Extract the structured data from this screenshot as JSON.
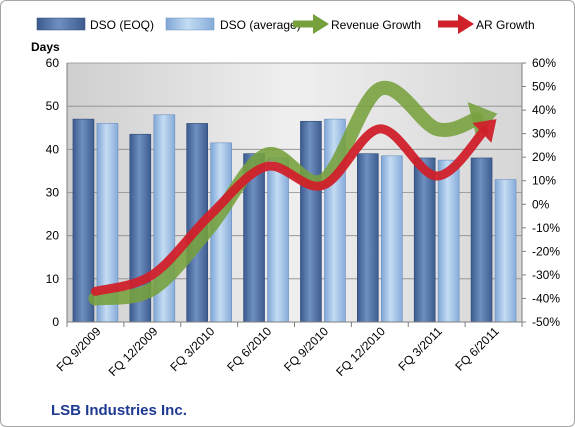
{
  "chart_data": {
    "type": "bar",
    "categories": [
      "FQ 9/2009",
      "FQ 12/2009",
      "FQ 3/2010",
      "FQ 6/2010",
      "FQ 9/2010",
      "FQ 12/2010",
      "FQ 3/2011",
      "FQ 6/2011"
    ],
    "series": [
      {
        "name": "DSO (EOQ)",
        "type": "bar",
        "axis": "left",
        "values": [
          47,
          43.5,
          46,
          39,
          46.5,
          39,
          38,
          38
        ]
      },
      {
        "name": "DSO (average)",
        "type": "bar",
        "axis": "left",
        "values": [
          46,
          48,
          41.5,
          38,
          47,
          38.5,
          37.5,
          33
        ]
      },
      {
        "name": "Revenue Growth",
        "type": "line",
        "axis": "right",
        "values": [
          -40,
          -36,
          -10,
          21,
          10,
          49,
          32,
          38
        ]
      },
      {
        "name": "AR Growth",
        "type": "line",
        "axis": "right",
        "values": [
          -37,
          -30,
          -5,
          16,
          8,
          32,
          12,
          35
        ]
      }
    ],
    "ylabel": "Days",
    "ylim": [
      0,
      60
    ],
    "yticks": [
      0,
      10,
      20,
      30,
      40,
      50,
      60
    ],
    "y2lim": [
      -50,
      60
    ],
    "y2ticks": [
      "-50%",
      "-40%",
      "-30%",
      "-20%",
      "-10%",
      "0%",
      "10%",
      "20%",
      "30%",
      "40%",
      "50%",
      "60%"
    ],
    "legend_position": "top",
    "grid": true,
    "company": "LSB Industries Inc.",
    "colors": {
      "dso_eoq": "#4a6a9c",
      "dso_avg": "#96b9e0",
      "revenue_growth": "#76a03c",
      "ar_growth": "#d0202a",
      "plot_bg": "#e3e3e3",
      "company_text": "#1f3a93"
    }
  }
}
